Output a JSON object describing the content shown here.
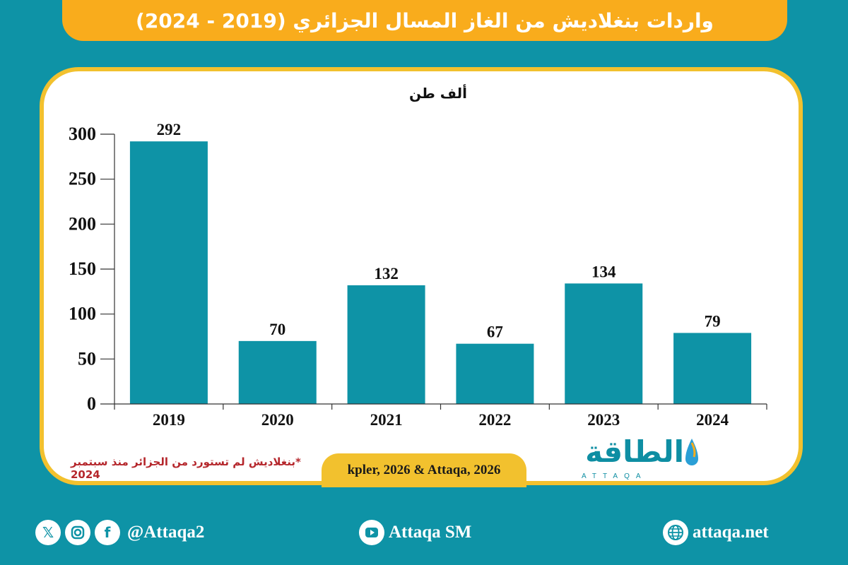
{
  "header": {
    "title": "واردات بنغلاديش من الغاز المسال الجزائري (2019 - 2024)"
  },
  "chart_data": {
    "type": "bar",
    "ylabel": "ألف طن",
    "categories": [
      "2019",
      "2020",
      "2021",
      "2022",
      "2023",
      "2024"
    ],
    "values": [
      292,
      70,
      132,
      67,
      134,
      79
    ],
    "ylim": [
      0,
      300
    ],
    "yticks": [
      "0",
      "50",
      "100",
      "150",
      "200",
      "250",
      "300"
    ],
    "grid": false,
    "bar_color": "#0e93a6"
  },
  "footnote": "*بنغلاديش لم تستورد من الجزائر منذ سبتمبر 2024",
  "source": "kpler, 2026 & Attaqa, 2026",
  "logo": {
    "text": "الطاقة",
    "sub": "ATTAQA"
  },
  "footer": {
    "social_handle": "@Attaqa2",
    "youtube": "Attaqa SM",
    "website": "attaqa.net"
  },
  "colors": {
    "background": "#0e93a6",
    "title_bar": "#f9ac1c",
    "card_border": "#f2c12e",
    "footnote": "#b5272c"
  }
}
